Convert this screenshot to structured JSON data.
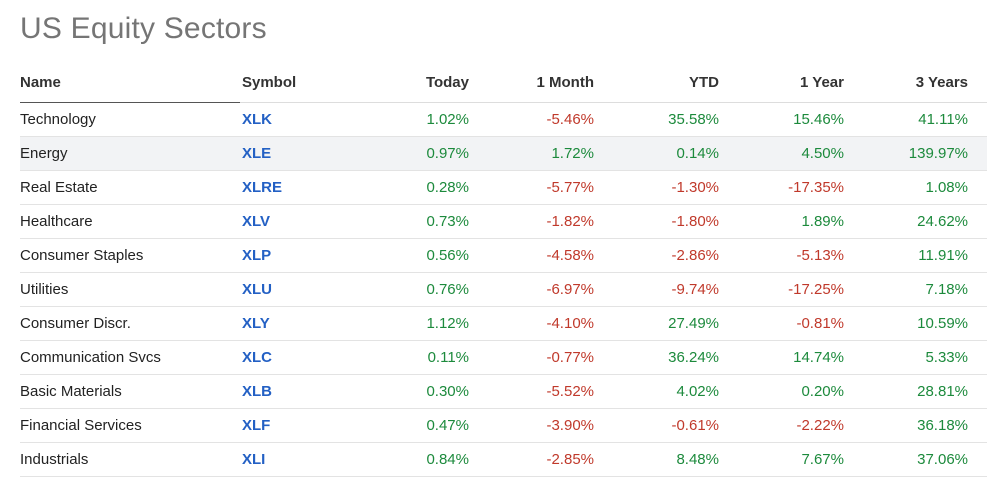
{
  "title": "US Equity Sectors",
  "columns": {
    "name": "Name",
    "symbol": "Symbol",
    "today": "Today",
    "month": "1 Month",
    "ytd": "YTD",
    "year": "1 Year",
    "three_years": "3 Years"
  },
  "colors": {
    "positive": "#1c8a3c",
    "negative": "#c0392b",
    "symbol_link": "#2360c4",
    "highlight_row": "#f2f3f5"
  },
  "rows": [
    {
      "name": "Technology",
      "symbol": "XLK",
      "today": "1.02%",
      "month": "-5.46%",
      "ytd": "35.58%",
      "year": "15.46%",
      "three_years": "41.11%"
    },
    {
      "name": "Energy",
      "symbol": "XLE",
      "today": "0.97%",
      "month": "1.72%",
      "ytd": "0.14%",
      "year": "4.50%",
      "three_years": "139.97%"
    },
    {
      "name": "Real Estate",
      "symbol": "XLRE",
      "today": "0.28%",
      "month": "-5.77%",
      "ytd": "-1.30%",
      "year": "-17.35%",
      "three_years": "1.08%"
    },
    {
      "name": "Healthcare",
      "symbol": "XLV",
      "today": "0.73%",
      "month": "-1.82%",
      "ytd": "-1.80%",
      "year": "1.89%",
      "three_years": "24.62%"
    },
    {
      "name": "Consumer Staples",
      "symbol": "XLP",
      "today": "0.56%",
      "month": "-4.58%",
      "ytd": "-2.86%",
      "year": "-5.13%",
      "three_years": "11.91%"
    },
    {
      "name": "Utilities",
      "symbol": "XLU",
      "today": "0.76%",
      "month": "-6.97%",
      "ytd": "-9.74%",
      "year": "-17.25%",
      "three_years": "7.18%"
    },
    {
      "name": "Consumer Discr.",
      "symbol": "XLY",
      "today": "1.12%",
      "month": "-4.10%",
      "ytd": "27.49%",
      "year": "-0.81%",
      "three_years": "10.59%"
    },
    {
      "name": "Communication Svcs",
      "symbol": "XLC",
      "today": "0.11%",
      "month": "-0.77%",
      "ytd": "36.24%",
      "year": "14.74%",
      "three_years": "5.33%"
    },
    {
      "name": "Basic Materials",
      "symbol": "XLB",
      "today": "0.30%",
      "month": "-5.52%",
      "ytd": "4.02%",
      "year": "0.20%",
      "three_years": "28.81%"
    },
    {
      "name": "Financial Services",
      "symbol": "XLF",
      "today": "0.47%",
      "month": "-3.90%",
      "ytd": "-0.61%",
      "year": "-2.22%",
      "three_years": "36.18%"
    },
    {
      "name": "Industrials",
      "symbol": "XLI",
      "today": "0.84%",
      "month": "-2.85%",
      "ytd": "8.48%",
      "year": "7.67%",
      "three_years": "37.06%"
    }
  ],
  "highlighted_row": "Energy"
}
